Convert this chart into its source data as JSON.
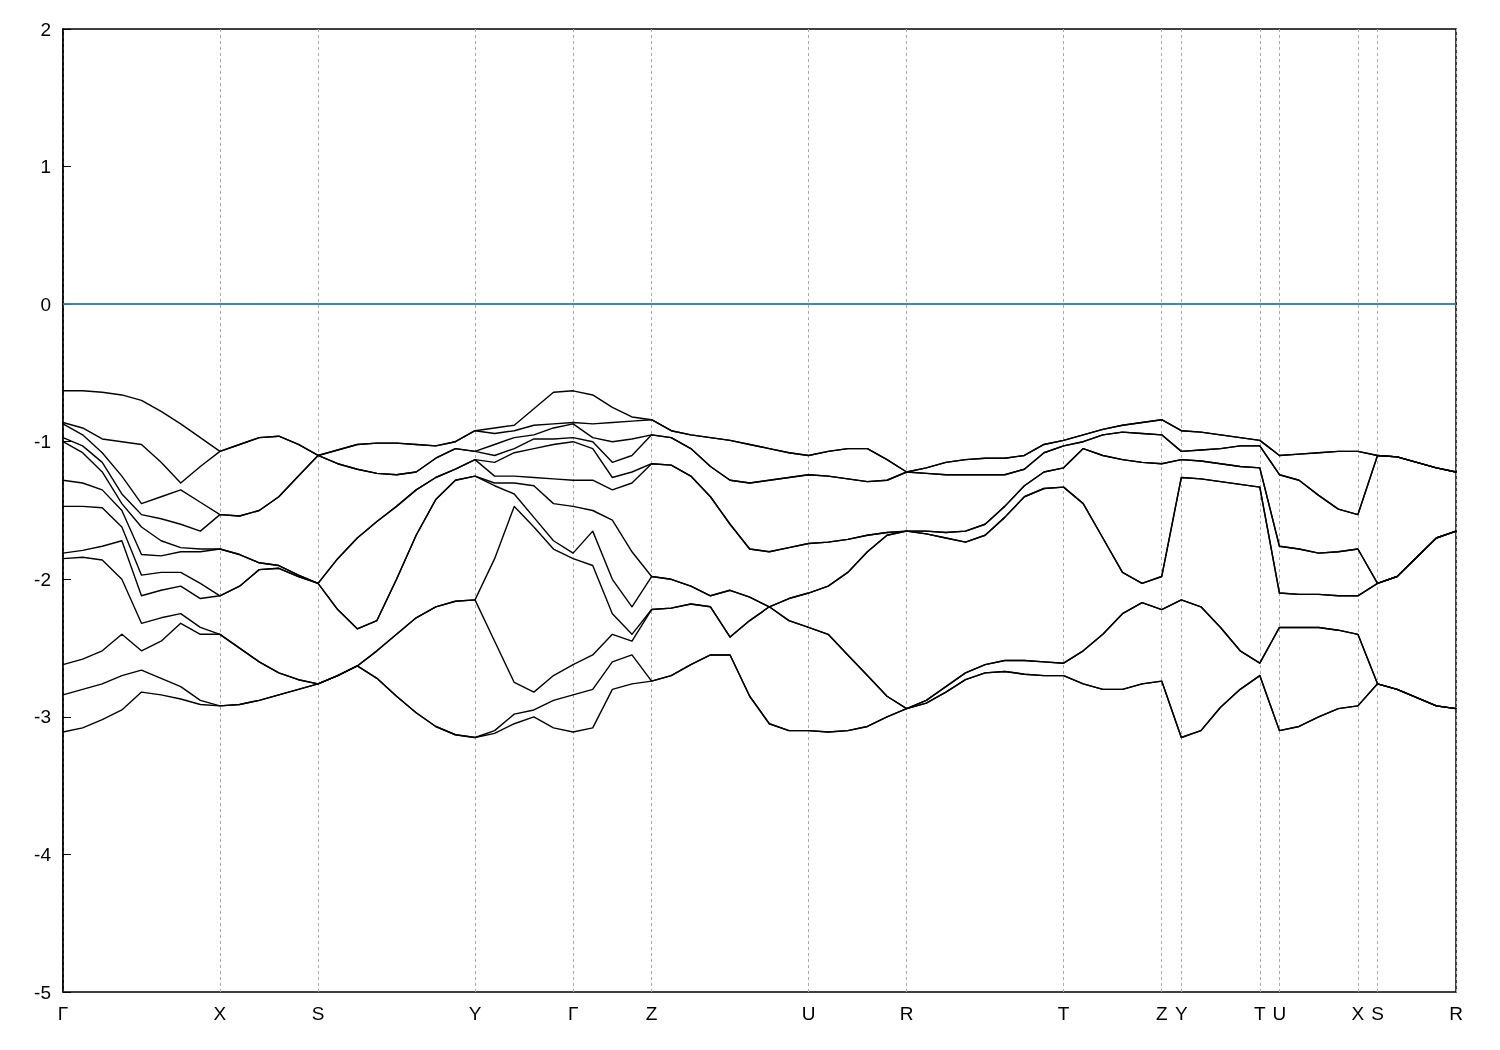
{
  "chart_data": {
    "type": "line",
    "ylim": [
      -5,
      2
    ],
    "categories": [
      "Γ",
      null,
      null,
      null,
      null,
      null,
      null,
      null,
      "X",
      null,
      null,
      null,
      null,
      "S",
      null,
      null,
      null,
      null,
      null,
      null,
      null,
      "Y",
      null,
      null,
      null,
      null,
      "Γ",
      null,
      null,
      null,
      "Z",
      null,
      null,
      null,
      null,
      null,
      null,
      null,
      "U",
      null,
      null,
      null,
      null,
      "R",
      null,
      null,
      null,
      null,
      null,
      null,
      null,
      "T",
      null,
      null,
      null,
      null,
      "Z",
      "Y",
      null,
      null,
      null,
      "T",
      "U",
      null,
      null,
      null,
      "X",
      "S",
      null,
      null,
      null,
      "R"
    ],
    "yticks": [
      -5,
      -4,
      -3,
      -2,
      -1,
      0,
      1,
      2
    ],
    "grid": "x",
    "ref_lines": [
      {
        "axis": "y",
        "value": 0,
        "color": "#3d9fd8"
      }
    ],
    "series": [
      {
        "color": "#000000",
        "values": [
          -0.63,
          -0.63,
          -0.64,
          -0.66,
          -0.7,
          -0.78,
          -0.87,
          -0.97,
          -1.07,
          -1.02,
          -0.97,
          -0.96,
          -1.02,
          -1.1,
          -1.06,
          -1.02,
          -1.01,
          -1.01,
          -1.02,
          -1.03,
          -1.0,
          -0.92,
          -0.9,
          -0.88,
          -0.76,
          -0.64,
          -0.63,
          -0.66,
          -0.75,
          -0.82,
          -0.84,
          -0.92,
          -0.95,
          -0.97,
          -0.99,
          -1.02,
          -1.05,
          -1.08,
          -1.1,
          -1.07,
          -1.05,
          -1.05,
          -1.13,
          -1.22,
          -1.19,
          -1.15,
          -1.13,
          -1.12,
          -1.12,
          -1.1,
          -1.02,
          -0.99,
          -0.95,
          -0.91,
          -0.88,
          -0.86,
          -0.84,
          -0.92,
          -0.93,
          -0.95,
          -0.97,
          -0.99,
          -1.1,
          -1.09,
          -1.08,
          -1.07,
          -1.07,
          -1.1,
          -1.11,
          -1.15,
          -1.19,
          -1.22
        ]
      },
      {
        "color": "#000000",
        "values": [
          -0.86,
          -0.9,
          -0.98,
          -1.0,
          -1.02,
          -1.15,
          -1.3,
          -1.18,
          -1.07,
          -1.02,
          -0.97,
          -0.96,
          -1.02,
          -1.1,
          -1.06,
          -1.02,
          -1.01,
          -1.01,
          -1.02,
          -1.03,
          -1.0,
          -0.92,
          -0.94,
          -0.92,
          -0.88,
          -0.87,
          -0.86,
          -0.87,
          -0.86,
          -0.85,
          -0.84,
          -0.92,
          -0.95,
          -0.97,
          -0.99,
          -1.02,
          -1.05,
          -1.08,
          -1.1,
          -1.07,
          -1.05,
          -1.05,
          -1.13,
          -1.22,
          -1.19,
          -1.15,
          -1.13,
          -1.12,
          -1.12,
          -1.1,
          -1.02,
          -0.99,
          -0.95,
          -0.91,
          -0.88,
          -0.86,
          -0.84,
          -0.92,
          -0.93,
          -0.95,
          -0.97,
          -0.99,
          -1.1,
          -1.09,
          -1.08,
          -1.07,
          -1.07,
          -1.1,
          -1.11,
          -1.15,
          -1.19,
          -1.22
        ]
      },
      {
        "color": "#000000",
        "values": [
          -0.87,
          -0.95,
          -1.08,
          -1.25,
          -1.45,
          -1.4,
          -1.35,
          -1.44,
          -1.53,
          -1.54,
          -1.5,
          -1.4,
          -1.25,
          -1.1,
          -1.16,
          -1.2,
          -1.23,
          -1.24,
          -1.22,
          -1.12,
          -1.05,
          -1.07,
          -1.02,
          -0.97,
          -0.95,
          -0.9,
          -0.87,
          -0.97,
          -1.0,
          -0.98,
          -0.95,
          -0.97,
          -1.05,
          -1.18,
          -1.28,
          -1.3,
          -1.28,
          -1.26,
          -1.24,
          -1.25,
          -1.27,
          -1.29,
          -1.28,
          -1.22,
          -1.23,
          -1.24,
          -1.24,
          -1.24,
          -1.24,
          -1.2,
          -1.08,
          -1.03,
          -1.0,
          -0.95,
          -0.93,
          -0.94,
          -0.95,
          -1.07,
          -1.06,
          -1.05,
          -1.03,
          -1.03,
          -1.24,
          -1.28,
          -1.39,
          -1.49,
          -1.53,
          -1.1,
          -1.11,
          -1.15,
          -1.19,
          -1.22
        ]
      },
      {
        "color": "#000000",
        "values": [
          -0.97,
          -1.03,
          -1.15,
          -1.38,
          -1.53,
          -1.56,
          -1.6,
          -1.65,
          -1.53,
          -1.54,
          -1.5,
          -1.4,
          -1.25,
          -1.1,
          -1.16,
          -1.2,
          -1.23,
          -1.24,
          -1.22,
          -1.12,
          -1.05,
          -1.07,
          -1.1,
          -1.05,
          -0.98,
          -0.98,
          -0.97,
          -1.0,
          -1.15,
          -1.1,
          -0.95,
          -0.97,
          -1.05,
          -1.18,
          -1.28,
          -1.3,
          -1.28,
          -1.26,
          -1.24,
          -1.25,
          -1.27,
          -1.29,
          -1.28,
          -1.22,
          -1.23,
          -1.24,
          -1.24,
          -1.24,
          -1.24,
          -1.2,
          -1.08,
          -1.03,
          -1.0,
          -0.95,
          -0.93,
          -0.94,
          -0.95,
          -1.07,
          -1.06,
          -1.05,
          -1.03,
          -1.03,
          -1.24,
          -1.28,
          -1.39,
          -1.49,
          -1.53,
          -1.1,
          -1.11,
          -1.15,
          -1.19,
          -1.22
        ]
      },
      {
        "color": "#000000",
        "values": [
          -1.0,
          -1.08,
          -1.22,
          -1.45,
          -1.62,
          -1.72,
          -1.77,
          -1.78,
          -1.78,
          -1.82,
          -1.88,
          -1.9,
          -1.97,
          -2.03,
          -1.85,
          -1.7,
          -1.58,
          -1.47,
          -1.35,
          -1.26,
          -1.2,
          -1.13,
          -1.15,
          -1.08,
          -1.05,
          -1.02,
          -1.0,
          -1.05,
          -1.26,
          -1.22,
          -1.16,
          -1.17,
          -1.25,
          -1.4,
          -1.6,
          -1.78,
          -1.8,
          -1.77,
          -1.74,
          -1.73,
          -1.71,
          -1.68,
          -1.66,
          -1.65,
          -1.65,
          -1.66,
          -1.65,
          -1.6,
          -1.47,
          -1.32,
          -1.22,
          -1.19,
          -1.05,
          -1.1,
          -1.13,
          -1.15,
          -1.16,
          -1.13,
          -1.14,
          -1.16,
          -1.18,
          -1.19,
          -1.76,
          -1.78,
          -1.81,
          -1.8,
          -1.78,
          -2.03,
          -1.98,
          -1.84,
          -1.7,
          -1.65
        ]
      },
      {
        "color": "#000000",
        "values": [
          -1.28,
          -1.3,
          -1.35,
          -1.5,
          -1.82,
          -1.83,
          -1.8,
          -1.8,
          -1.78,
          -1.82,
          -1.88,
          -1.9,
          -1.97,
          -2.03,
          -1.85,
          -1.7,
          -1.58,
          -1.47,
          -1.35,
          -1.26,
          -1.2,
          -1.13,
          -1.25,
          -1.25,
          -1.26,
          -1.27,
          -1.28,
          -1.28,
          -1.35,
          -1.3,
          -1.16,
          -1.17,
          -1.25,
          -1.4,
          -1.6,
          -1.78,
          -1.8,
          -1.77,
          -1.74,
          -1.73,
          -1.71,
          -1.68,
          -1.66,
          -1.65,
          -1.65,
          -1.66,
          -1.65,
          -1.6,
          -1.47,
          -1.32,
          -1.22,
          -1.19,
          -1.05,
          -1.1,
          -1.13,
          -1.15,
          -1.16,
          -1.13,
          -1.14,
          -1.16,
          -1.18,
          -1.19,
          -1.76,
          -1.78,
          -1.81,
          -1.8,
          -1.78,
          -2.03,
          -1.98,
          -1.84,
          -1.7,
          -1.65
        ]
      },
      {
        "color": "#000000",
        "values": [
          -1.47,
          -1.47,
          -1.48,
          -1.62,
          -1.97,
          -1.95,
          -1.95,
          -2.03,
          -2.12,
          -2.05,
          -1.93,
          -1.92,
          -1.98,
          -2.03,
          -2.22,
          -2.36,
          -2.3,
          -2.0,
          -1.68,
          -1.42,
          -1.28,
          -1.25,
          -1.3,
          -1.3,
          -1.32,
          -1.45,
          -1.47,
          -1.5,
          -1.57,
          -1.8,
          -1.98,
          -2.0,
          -2.05,
          -2.12,
          -2.08,
          -2.13,
          -2.2,
          -2.14,
          -2.1,
          -2.05,
          -1.95,
          -1.8,
          -1.68,
          -1.65,
          -1.67,
          -1.7,
          -1.73,
          -1.68,
          -1.55,
          -1.4,
          -1.34,
          -1.33,
          -1.45,
          -1.7,
          -1.95,
          -2.03,
          -1.98,
          -1.26,
          -1.27,
          -1.29,
          -1.31,
          -1.33,
          -2.1,
          -2.11,
          -2.11,
          -2.12,
          -2.12,
          -2.03,
          -1.98,
          -1.84,
          -1.7,
          -1.65
        ]
      },
      {
        "color": "#000000",
        "values": [
          -1.81,
          -1.79,
          -1.76,
          -1.72,
          -2.12,
          -2.08,
          -2.05,
          -2.14,
          -2.12,
          -2.05,
          -1.93,
          -1.92,
          -1.98,
          -2.03,
          -2.22,
          -2.36,
          -2.3,
          -2.0,
          -1.68,
          -1.42,
          -1.28,
          -1.25,
          -1.32,
          -1.38,
          -1.55,
          -1.72,
          -1.81,
          -1.65,
          -2.0,
          -2.2,
          -1.98,
          -2.0,
          -2.05,
          -2.12,
          -2.08,
          -2.13,
          -2.2,
          -2.14,
          -2.1,
          -2.05,
          -1.95,
          -1.8,
          -1.68,
          -1.65,
          -1.67,
          -1.7,
          -1.73,
          -1.68,
          -1.55,
          -1.4,
          -1.34,
          -1.33,
          -1.45,
          -1.7,
          -1.95,
          -2.03,
          -1.98,
          -1.26,
          -1.27,
          -1.29,
          -1.31,
          -1.33,
          -2.1,
          -2.11,
          -2.11,
          -2.12,
          -2.12,
          -2.03,
          -1.98,
          -1.84,
          -1.7,
          -1.65
        ]
      },
      {
        "color": "#000000",
        "values": [
          -1.85,
          -1.84,
          -1.86,
          -2.0,
          -2.32,
          -2.28,
          -2.25,
          -2.35,
          -2.4,
          -2.5,
          -2.6,
          -2.68,
          -2.73,
          -2.76,
          -2.7,
          -2.63,
          -2.52,
          -2.4,
          -2.28,
          -2.2,
          -2.16,
          -2.15,
          -1.85,
          -1.47,
          -1.62,
          -1.78,
          -1.85,
          -1.9,
          -2.25,
          -2.4,
          -2.22,
          -2.21,
          -2.18,
          -2.2,
          -2.42,
          -2.3,
          -2.2,
          -2.3,
          -2.35,
          -2.4,
          -2.55,
          -2.7,
          -2.85,
          -2.94,
          -2.88,
          -2.78,
          -2.68,
          -2.62,
          -2.59,
          -2.59,
          -2.6,
          -2.61,
          -2.52,
          -2.4,
          -2.25,
          -2.17,
          -2.22,
          -2.15,
          -2.2,
          -2.35,
          -2.52,
          -2.61,
          -2.35,
          -2.35,
          -2.35,
          -2.37,
          -2.4,
          -2.76,
          -2.8,
          -2.86,
          -2.92,
          -2.94
        ]
      },
      {
        "color": "#000000",
        "values": [
          -2.62,
          -2.58,
          -2.52,
          -2.4,
          -2.52,
          -2.45,
          -2.32,
          -2.4,
          -2.4,
          -2.5,
          -2.6,
          -2.68,
          -2.73,
          -2.76,
          -2.7,
          -2.63,
          -2.52,
          -2.4,
          -2.28,
          -2.2,
          -2.16,
          -2.15,
          -2.45,
          -2.75,
          -2.82,
          -2.7,
          -2.62,
          -2.55,
          -2.4,
          -2.45,
          -2.22,
          -2.21,
          -2.18,
          -2.2,
          -2.42,
          -2.3,
          -2.2,
          -2.3,
          -2.35,
          -2.4,
          -2.55,
          -2.7,
          -2.85,
          -2.94,
          -2.88,
          -2.78,
          -2.68,
          -2.62,
          -2.59,
          -2.59,
          -2.6,
          -2.61,
          -2.52,
          -2.4,
          -2.25,
          -2.17,
          -2.22,
          -2.15,
          -2.2,
          -2.35,
          -2.52,
          -2.61,
          -2.35,
          -2.35,
          -2.35,
          -2.37,
          -2.4,
          -2.76,
          -2.8,
          -2.86,
          -2.92,
          -2.94
        ]
      },
      {
        "color": "#000000",
        "values": [
          -2.84,
          -2.8,
          -2.76,
          -2.7,
          -2.66,
          -2.72,
          -2.78,
          -2.88,
          -2.92,
          -2.91,
          -2.88,
          -2.84,
          -2.8,
          -2.76,
          -2.7,
          -2.63,
          -2.72,
          -2.85,
          -2.97,
          -3.07,
          -3.13,
          -3.15,
          -3.1,
          -2.98,
          -2.95,
          -2.88,
          -2.84,
          -2.8,
          -2.6,
          -2.55,
          -2.74,
          -2.7,
          -2.62,
          -2.55,
          -2.55,
          -2.85,
          -3.05,
          -3.1,
          -3.1,
          -3.11,
          -3.1,
          -3.07,
          -3.0,
          -2.94,
          -2.9,
          -2.82,
          -2.73,
          -2.68,
          -2.67,
          -2.69,
          -2.7,
          -2.7,
          -2.76,
          -2.8,
          -2.8,
          -2.76,
          -2.74,
          -3.15,
          -3.1,
          -2.93,
          -2.8,
          -2.7,
          -3.1,
          -3.07,
          -3.0,
          -2.94,
          -2.92,
          -2.76,
          -2.8,
          -2.86,
          -2.92,
          -2.94
        ]
      },
      {
        "color": "#000000",
        "values": [
          -3.11,
          -3.08,
          -3.02,
          -2.95,
          -2.82,
          -2.84,
          -2.87,
          -2.91,
          -2.92,
          -2.91,
          -2.88,
          -2.84,
          -2.8,
          -2.76,
          -2.7,
          -2.63,
          -2.72,
          -2.85,
          -2.97,
          -3.07,
          -3.13,
          -3.15,
          -3.12,
          -3.05,
          -3.0,
          -3.08,
          -3.11,
          -3.08,
          -2.8,
          -2.76,
          -2.74,
          -2.7,
          -2.62,
          -2.55,
          -2.55,
          -2.85,
          -3.05,
          -3.1,
          -3.1,
          -3.11,
          -3.1,
          -3.07,
          -3.0,
          -2.94,
          -2.9,
          -2.82,
          -2.73,
          -2.68,
          -2.67,
          -2.69,
          -2.7,
          -2.7,
          -2.76,
          -2.8,
          -2.8,
          -2.76,
          -2.74,
          -3.15,
          -3.1,
          -2.93,
          -2.8,
          -2.7,
          -3.1,
          -3.07,
          -3.0,
          -2.94,
          -2.92,
          -2.76,
          -2.8,
          -2.86,
          -2.92,
          -2.94
        ]
      }
    ]
  }
}
